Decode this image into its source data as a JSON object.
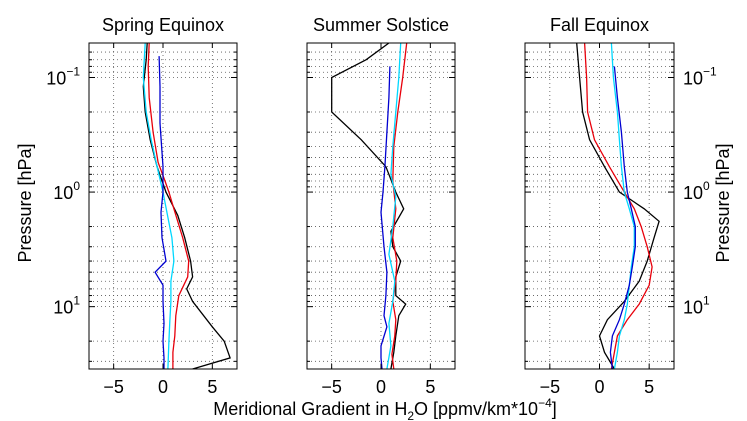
{
  "figure": {
    "xlabel_main": "Meridional Gradient in H",
    "xlabel_sub": "2",
    "xlabel_rest": "O [ppmv/km*10",
    "xlabel_sup": "−4",
    "xlabel_end": "]",
    "ylabel": "Pressure [hPa]"
  },
  "colors": {
    "black": "#000000",
    "red": "#e8000b",
    "cyan": "#00d8ff",
    "blue": "#0000d0",
    "grid": "#555555"
  },
  "chart_data": [
    {
      "type": "line",
      "title": "Spring Equinox",
      "xlim": [
        -7.5,
        7.5
      ],
      "xticks": [
        -5,
        0,
        5
      ],
      "ylim": [
        0.05,
        35
      ],
      "yscale": "log-reversed",
      "yticks": [
        {
          "value": 0.1,
          "base": "10",
          "exp": "−1"
        },
        {
          "value": 1,
          "base": "10",
          "exp": "0"
        },
        {
          "value": 10,
          "base": "10",
          "exp": "1"
        }
      ],
      "grid": true,
      "series": [
        {
          "color": "black",
          "points": [
            [
              -1.6,
              0.05
            ],
            [
              -1.7,
              0.07
            ],
            [
              -2.0,
              0.12
            ],
            [
              -1.8,
              0.2
            ],
            [
              -1.3,
              0.35
            ],
            [
              -0.6,
              0.6
            ],
            [
              0.3,
              1.0
            ],
            [
              1.5,
              1.6
            ],
            [
              2.2,
              2.5
            ],
            [
              2.8,
              4.0
            ],
            [
              3.0,
              5.5
            ],
            [
              2.4,
              7.0
            ],
            [
              3.0,
              9.0
            ],
            [
              5.0,
              15
            ],
            [
              6.2,
              20
            ],
            [
              6.8,
              28
            ],
            [
              3.0,
              35
            ]
          ]
        },
        {
          "color": "red",
          "points": [
            [
              -1.4,
              0.05
            ],
            [
              -1.5,
              0.08
            ],
            [
              -1.4,
              0.15
            ],
            [
              -1.0,
              0.3
            ],
            [
              -0.5,
              0.55
            ],
            [
              0.2,
              0.8
            ],
            [
              0.6,
              1.0
            ],
            [
              1.1,
              1.4
            ],
            [
              2.0,
              2.5
            ],
            [
              2.6,
              4.0
            ],
            [
              2.5,
              5.5
            ],
            [
              1.6,
              8.0
            ],
            [
              1.3,
              12
            ],
            [
              1.2,
              18
            ],
            [
              1.0,
              25
            ],
            [
              1.0,
              35
            ]
          ]
        },
        {
          "color": "cyan",
          "points": [
            [
              -1.8,
              0.05
            ],
            [
              -2.0,
              0.1
            ],
            [
              -1.7,
              0.2
            ],
            [
              -1.2,
              0.35
            ],
            [
              -0.6,
              0.6
            ],
            [
              0.0,
              1.0
            ],
            [
              0.4,
              1.5
            ],
            [
              0.9,
              2.5
            ],
            [
              1.1,
              4.0
            ],
            [
              0.8,
              6.0
            ],
            [
              0.8,
              9.0
            ],
            [
              0.7,
              13
            ],
            [
              0.6,
              20
            ],
            [
              0.5,
              35
            ]
          ]
        },
        {
          "color": "blue",
          "points": [
            [
              -0.4,
              0.065
            ],
            [
              -0.3,
              0.12
            ],
            [
              -0.3,
              0.25
            ],
            [
              0.0,
              0.6
            ],
            [
              0.0,
              1.0
            ],
            [
              -0.2,
              1.5
            ],
            [
              -0.1,
              2.5
            ],
            [
              0.3,
              4.0
            ],
            [
              -0.8,
              5.0
            ],
            [
              0.0,
              6.5
            ],
            [
              0.0,
              9.0
            ],
            [
              0.1,
              14
            ],
            [
              0.0,
              20
            ],
            [
              0.1,
              28
            ],
            [
              0.1,
              35
            ]
          ]
        }
      ]
    },
    {
      "type": "line",
      "title": "Summer Solstice",
      "xlim": [
        -7.5,
        7.5
      ],
      "xticks": [
        -5,
        0,
        5
      ],
      "ylim": [
        0.05,
        35
      ],
      "yscale": "log-reversed",
      "grid": true,
      "series": [
        {
          "color": "black",
          "points": [
            [
              0.8,
              0.05
            ],
            [
              -1.5,
              0.07
            ],
            [
              -5.0,
              0.1
            ],
            [
              -5.0,
              0.2
            ],
            [
              -2.0,
              0.35
            ],
            [
              0.5,
              0.6
            ],
            [
              1.5,
              1.0
            ],
            [
              2.3,
              1.4
            ],
            [
              1.0,
              2.2
            ],
            [
              1.2,
              3.0
            ],
            [
              2.0,
              4.0
            ],
            [
              1.5,
              5.5
            ],
            [
              1.5,
              8.0
            ],
            [
              2.5,
              9.5
            ],
            [
              1.8,
              12
            ],
            [
              1.5,
              18
            ],
            [
              1.3,
              25
            ],
            [
              1.0,
              35
            ]
          ]
        },
        {
          "color": "red",
          "points": [
            [
              2.6,
              0.05
            ],
            [
              2.2,
              0.1
            ],
            [
              1.7,
              0.2
            ],
            [
              1.3,
              0.4
            ],
            [
              1.2,
              0.8
            ],
            [
              1.5,
              1.4
            ],
            [
              1.2,
              2.5
            ],
            [
              1.6,
              4.0
            ],
            [
              1.5,
              6.0
            ],
            [
              1.2,
              9.0
            ],
            [
              1.5,
              13
            ],
            [
              1.4,
              18
            ],
            [
              1.1,
              26
            ],
            [
              1.3,
              35
            ]
          ]
        },
        {
          "color": "cyan",
          "points": [
            [
              2.0,
              0.05
            ],
            [
              1.8,
              0.1
            ],
            [
              1.5,
              0.2
            ],
            [
              1.2,
              0.4
            ],
            [
              1.0,
              0.7
            ],
            [
              1.5,
              1.1
            ],
            [
              1.2,
              2.0
            ],
            [
              0.8,
              3.5
            ],
            [
              1.4,
              6.0
            ],
            [
              1.2,
              9.0
            ],
            [
              0.8,
              14
            ],
            [
              1.0,
              22
            ],
            [
              0.6,
              35
            ]
          ]
        },
        {
          "color": "blue",
          "points": [
            [
              0.9,
              0.08
            ],
            [
              0.8,
              0.15
            ],
            [
              0.6,
              0.3
            ],
            [
              0.4,
              0.6
            ],
            [
              0.2,
              1.0
            ],
            [
              0.0,
              1.5
            ],
            [
              0.3,
              3.0
            ],
            [
              0.6,
              5.0
            ],
            [
              0.5,
              8.0
            ],
            [
              0.3,
              12
            ],
            [
              0.6,
              15
            ],
            [
              0.0,
              22
            ],
            [
              0.0,
              28
            ],
            [
              0.1,
              35
            ]
          ]
        }
      ]
    },
    {
      "type": "line",
      "title": "Fall Equinox",
      "xlim": [
        -7.5,
        7.5
      ],
      "xticks": [
        -5,
        0,
        5
      ],
      "ylim": [
        0.05,
        35
      ],
      "yscale": "log-reversed",
      "yticks": [
        {
          "value": 0.1,
          "base": "10",
          "exp": "−1"
        },
        {
          "value": 1,
          "base": "10",
          "exp": "0"
        },
        {
          "value": 10,
          "base": "10",
          "exp": "1"
        }
      ],
      "grid": true,
      "series": [
        {
          "color": "black",
          "points": [
            [
              -2.3,
              0.05
            ],
            [
              -2.0,
              0.1
            ],
            [
              -1.7,
              0.2
            ],
            [
              -1.0,
              0.35
            ],
            [
              0.5,
              0.6
            ],
            [
              2.0,
              1.0
            ],
            [
              4.5,
              1.4
            ],
            [
              6.0,
              1.8
            ],
            [
              5.5,
              2.5
            ],
            [
              4.8,
              4.0
            ],
            [
              4.0,
              6.0
            ],
            [
              2.5,
              9.0
            ],
            [
              0.8,
              13
            ],
            [
              0.0,
              18
            ],
            [
              0.5,
              25
            ],
            [
              1.5,
              35
            ]
          ]
        },
        {
          "color": "red",
          "points": [
            [
              -1.5,
              0.05
            ],
            [
              -1.3,
              0.1
            ],
            [
              -1.2,
              0.2
            ],
            [
              -0.5,
              0.35
            ],
            [
              1.0,
              0.6
            ],
            [
              2.5,
              1.0
            ],
            [
              3.5,
              1.4
            ],
            [
              4.2,
              2.0
            ],
            [
              4.8,
              3.0
            ],
            [
              5.3,
              4.5
            ],
            [
              5.0,
              6.5
            ],
            [
              4.0,
              9.5
            ],
            [
              2.8,
              13
            ],
            [
              1.8,
              18
            ],
            [
              1.5,
              25
            ],
            [
              1.2,
              35
            ]
          ]
        },
        {
          "color": "cyan",
          "points": [
            [
              1.2,
              0.05
            ],
            [
              1.4,
              0.1
            ],
            [
              1.8,
              0.2
            ],
            [
              2.0,
              0.35
            ],
            [
              2.2,
              0.6
            ],
            [
              2.5,
              1.0
            ],
            [
              3.0,
              1.4
            ],
            [
              3.5,
              2.0
            ],
            [
              3.5,
              3.0
            ],
            [
              3.2,
              4.5
            ],
            [
              3.0,
              6.5
            ],
            [
              2.8,
              9.5
            ],
            [
              2.5,
              13
            ],
            [
              2.0,
              18
            ],
            [
              1.8,
              25
            ],
            [
              1.5,
              35
            ]
          ]
        },
        {
          "color": "blue",
          "points": [
            [
              1.5,
              0.08
            ],
            [
              1.8,
              0.15
            ],
            [
              2.2,
              0.3
            ],
            [
              2.5,
              0.6
            ],
            [
              2.8,
              1.0
            ],
            [
              3.2,
              1.4
            ],
            [
              3.6,
              2.0
            ],
            [
              3.6,
              3.0
            ],
            [
              3.3,
              4.5
            ],
            [
              3.0,
              6.5
            ],
            [
              2.5,
              9.5
            ],
            [
              2.0,
              13
            ],
            [
              1.3,
              18
            ],
            [
              1.1,
              25
            ],
            [
              1.3,
              35
            ]
          ]
        }
      ]
    }
  ]
}
